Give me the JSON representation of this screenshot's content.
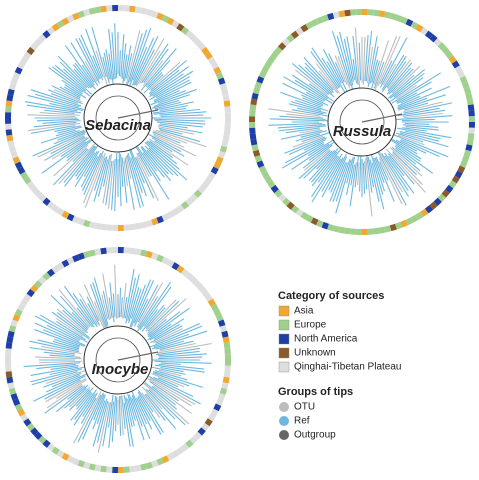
{
  "trees": [
    {
      "label": "Sebacina"
    },
    {
      "label": "Russula"
    },
    {
      "label": "Inocybe"
    }
  ],
  "legend": {
    "sources": {
      "title": "Category of sources",
      "items": [
        {
          "label": "Asia",
          "color": "#f0a830"
        },
        {
          "label": "Europe",
          "color": "#9fd08c"
        },
        {
          "label": "North America",
          "color": "#1f3fa8"
        },
        {
          "label": "Unknown",
          "color": "#8a5a2b"
        },
        {
          "label": "Qinghai-Tibetan Plateau",
          "color": "#dedede"
        }
      ]
    },
    "groups": {
      "title": "Groups of tips",
      "items": [
        {
          "label": "OTU",
          "color": "#bdbdbd"
        },
        {
          "label": "Ref",
          "color": "#6cb8e0"
        },
        {
          "label": "Outgroup",
          "color": "#666666"
        }
      ]
    }
  }
}
